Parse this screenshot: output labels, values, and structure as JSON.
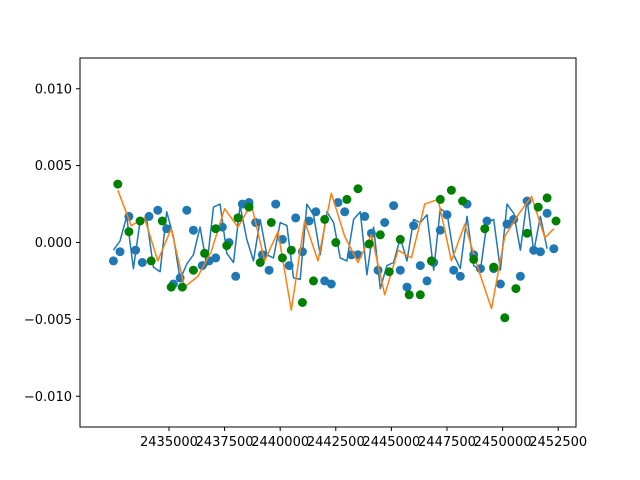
{
  "chart_data": {
    "type": "scatter",
    "xlim": [
      2431000,
      2453300
    ],
    "ylim": [
      -0.012,
      0.012
    ],
    "xticks": [
      2435000,
      2437500,
      2440000,
      2442500,
      2445000,
      2447500,
      2450000,
      2452500
    ],
    "xtick_labels": [
      "2435000",
      "2437500",
      "2440000",
      "2442500",
      "2445000",
      "2447500",
      "2450000",
      "2452500"
    ],
    "yticks": [
      -0.01,
      -0.005,
      0.0,
      0.005,
      0.01
    ],
    "ytick_labels": [
      "−0.010",
      "−0.005",
      "0.000",
      "0.005",
      "0.010"
    ],
    "grid": false,
    "colors": {
      "blue": "#1f77b4",
      "orange": "#ff7f0e",
      "green": "#008000"
    },
    "series": [
      {
        "kind": "line",
        "color": "#1f77b4",
        "x": [
          2432500,
          2432800,
          2433100,
          2433400,
          2433700,
          2434000,
          2434300,
          2434600,
          2434900,
          2435200,
          2435500,
          2435800,
          2436100,
          2436400,
          2436700,
          2437000,
          2437300,
          2437600,
          2437900,
          2438200,
          2438500,
          2438800,
          2439100,
          2439400,
          2439700,
          2440000,
          2440300,
          2440600,
          2440900,
          2441200,
          2441500,
          2441800,
          2442100,
          2442400,
          2442700,
          2443000,
          2443300,
          2443600,
          2443900,
          2444200,
          2444500,
          2444800,
          2445100,
          2445400,
          2445700,
          2446000,
          2446300,
          2446600,
          2446900,
          2447200,
          2447500,
          2447800,
          2448100,
          2448400,
          2448700,
          2449000,
          2449300,
          2449600,
          2449900,
          2450200,
          2450500,
          2450800,
          2451100,
          2451400,
          2451700,
          2452000
        ],
        "y": [
          -0.0005,
          0.0001,
          0.0017,
          -0.0017,
          0.0014,
          0.0015,
          -0.0016,
          -0.0019,
          0.002,
          0.0004,
          -0.0024,
          -0.0014,
          -0.0008,
          0.001,
          -0.0015,
          0.0023,
          0.0025,
          -0.0007,
          -0.0013,
          0.0024,
          0.0002,
          -0.0012,
          0.0015,
          -0.0008,
          -0.001,
          0.0013,
          0.0011,
          -0.0023,
          -0.0024,
          0.0025,
          0.0018,
          -0.0008,
          0.002,
          0.0013,
          -0.001,
          -0.0012,
          0.0015,
          0.002,
          -0.0021,
          0.001,
          -0.003,
          -0.0015,
          -0.0013,
          0.0003,
          -0.0012,
          0.0015,
          0.0013,
          0.0018,
          -0.0018,
          0.0022,
          0.0019,
          -0.0008,
          -0.0017,
          0.0017,
          -0.0015,
          -0.0018,
          0.0013,
          0.0015,
          -0.0018,
          0.0025,
          0.0019,
          -0.0005,
          0.0028,
          -0.0006,
          0.0017,
          -0.0004
        ]
      },
      {
        "kind": "markers",
        "color": "#1f77b4",
        "x": [
          2432500,
          2432800,
          2433200,
          2433500,
          2433800,
          2434100,
          2434500,
          2434900,
          2435200,
          2435500,
          2435800,
          2436100,
          2436500,
          2436800,
          2437100,
          2437400,
          2437700,
          2438000,
          2438300,
          2438600,
          2438900,
          2439200,
          2439500,
          2439800,
          2440100,
          2440400,
          2440700,
          2441000,
          2441300,
          2441600,
          2442000,
          2442300,
          2442600,
          2442900,
          2443200,
          2443500,
          2443800,
          2444100,
          2444400,
          2444700,
          2445100,
          2445400,
          2445700,
          2446000,
          2446300,
          2446600,
          2446900,
          2447200,
          2447500,
          2447800,
          2448100,
          2448400,
          2448700,
          2449000,
          2449300,
          2449600,
          2449900,
          2450200,
          2450500,
          2450800,
          2451100,
          2451400,
          2451700,
          2452000,
          2452300
        ],
        "y": [
          -0.0012,
          -0.0006,
          0.0017,
          -0.0005,
          -0.0013,
          0.0017,
          0.0021,
          0.0009,
          -0.0027,
          -0.0023,
          0.0021,
          0.0008,
          -0.0015,
          -0.0012,
          -0.001,
          0.001,
          0.0,
          -0.0022,
          0.0025,
          0.0026,
          0.0013,
          -0.0008,
          -0.0018,
          0.0025,
          0.0002,
          -0.0015,
          0.0016,
          -0.0006,
          0.0014,
          0.002,
          -0.0025,
          -0.0027,
          0.0026,
          0.002,
          -0.0008,
          -0.0008,
          0.0017,
          0.0006,
          -0.0018,
          0.0013,
          0.0024,
          -0.0018,
          -0.0029,
          0.0011,
          -0.0015,
          -0.0025,
          -0.0013,
          0.0008,
          0.0018,
          -0.0018,
          -0.0022,
          0.0025,
          -0.0008,
          -0.0017,
          0.0014,
          -0.0017,
          -0.0027,
          0.0012,
          0.0015,
          -0.0022,
          0.0027,
          -0.0005,
          -0.0006,
          0.0019,
          -0.0004
        ]
      },
      {
        "kind": "line",
        "color": "#ff7f0e",
        "x": [
          2432700,
          2433300,
          2433900,
          2434500,
          2435100,
          2435700,
          2436300,
          2436900,
          2437500,
          2438100,
          2438700,
          2439300,
          2439900,
          2440500,
          2441100,
          2441700,
          2442300,
          2442900,
          2443500,
          2444100,
          2444700,
          2445300,
          2445900,
          2446500,
          2447100,
          2447700,
          2448300,
          2448900,
          2449500,
          2450100,
          2450700,
          2451300,
          2451900,
          2452300
        ],
        "y": [
          0.0034,
          0.0011,
          0.0016,
          -0.0012,
          0.0009,
          -0.0029,
          -0.0022,
          -0.0006,
          0.0022,
          0.001,
          0.0025,
          -0.0012,
          0.0007,
          -0.0044,
          0.0014,
          -0.0012,
          0.0032,
          0.0004,
          -0.0013,
          0.0005,
          -0.0034,
          -0.0005,
          -0.001,
          0.0025,
          0.0028,
          -0.0012,
          0.0012,
          -0.0017,
          -0.0043,
          0.0004,
          0.0018,
          0.003,
          0.0003,
          0.0009
        ]
      },
      {
        "kind": "markers",
        "color": "#008000",
        "x": [
          2432700,
          2433200,
          2433700,
          2434200,
          2434700,
          2435100,
          2435600,
          2436100,
          2436600,
          2437100,
          2437600,
          2438100,
          2438600,
          2439100,
          2439600,
          2440100,
          2440500,
          2441000,
          2441500,
          2442000,
          2442500,
          2443000,
          2443500,
          2444000,
          2444500,
          2444900,
          2445400,
          2445800,
          2446300,
          2446800,
          2447200,
          2447700,
          2448200,
          2448700,
          2449200,
          2449600,
          2450100,
          2450600,
          2451100,
          2451600,
          2452000,
          2452400
        ],
        "y": [
          0.0038,
          0.0007,
          0.0014,
          -0.0012,
          0.0014,
          -0.0029,
          -0.0029,
          -0.0018,
          -0.0007,
          0.0009,
          -0.0002,
          0.0016,
          0.0023,
          -0.0013,
          0.0013,
          -0.001,
          -0.0005,
          -0.0039,
          -0.0025,
          0.0015,
          0.0,
          0.0028,
          0.0035,
          -0.0001,
          0.0005,
          -0.0019,
          0.0002,
          -0.0034,
          -0.0034,
          -0.0012,
          0.0028,
          0.0034,
          0.0027,
          -0.0011,
          0.0009,
          -0.0016,
          -0.0049,
          -0.003,
          0.0006,
          0.0023,
          0.0029,
          0.0014
        ]
      }
    ]
  }
}
